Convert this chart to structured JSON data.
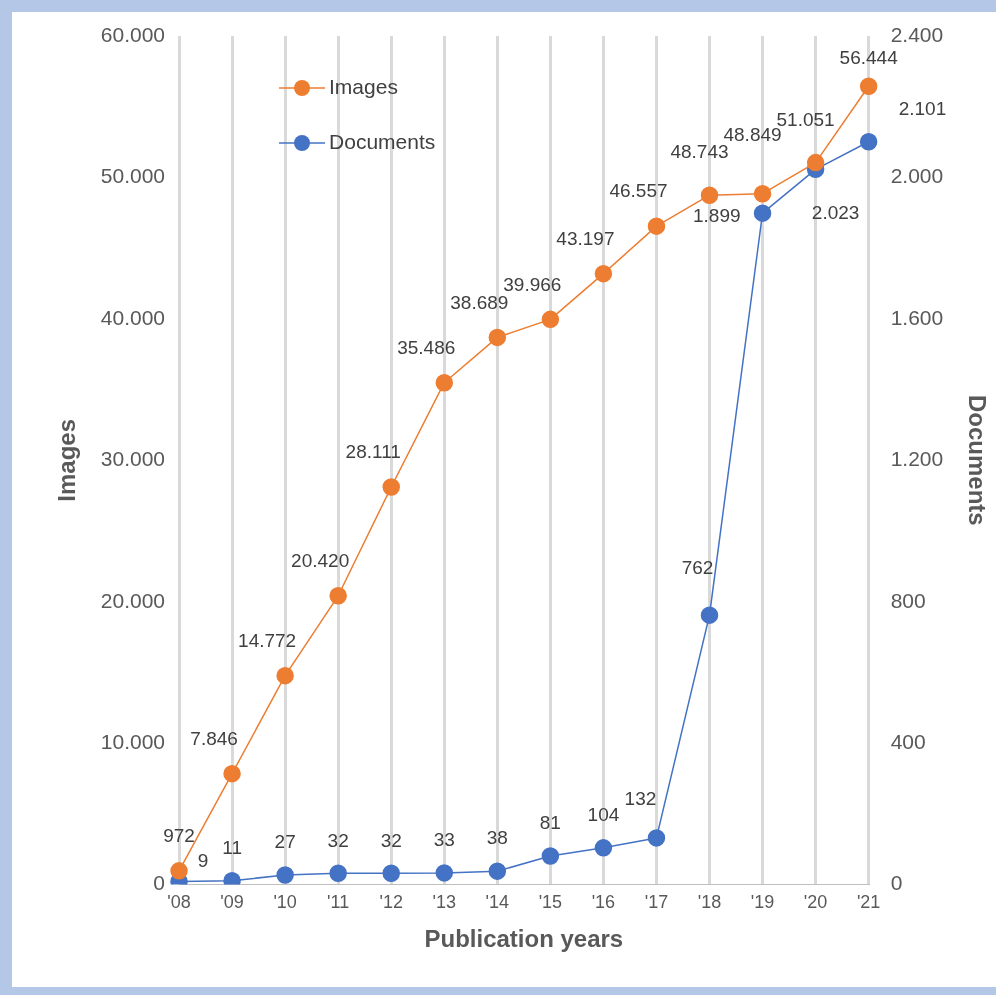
{
  "chart_data": {
    "type": "line",
    "xlabel": "Publication years",
    "ylabel": "Images",
    "y2label": "Documents",
    "categories": [
      "'08",
      "'09",
      "'10",
      "'11",
      "'12",
      "'13",
      "'14",
      "'15",
      "'16",
      "'17",
      "'18",
      "'19",
      "'20",
      "'21"
    ],
    "series": [
      {
        "name": "Images",
        "color": "#ed7d31",
        "values": [
          972,
          7846,
          14772,
          20420,
          28111,
          35486,
          38689,
          39966,
          43197,
          46557,
          48743,
          48849,
          51051,
          56444
        ],
        "value_labels": [
          "972",
          "7.846",
          "14.772",
          "20.420",
          "28.111",
          "35.486",
          "38.689",
          "39.966",
          "43.197",
          "46.557",
          "48.743",
          "48.849",
          "51.051",
          "56.444"
        ]
      },
      {
        "name": "Documents",
        "color": "#4472c4",
        "axis": "y2",
        "values": [
          9,
          11,
          27,
          32,
          32,
          33,
          38,
          81,
          104,
          132,
          762,
          1899,
          2023,
          2101
        ],
        "value_labels": [
          "9",
          "11",
          "27",
          "32",
          "32",
          "33",
          "38",
          "81",
          "104",
          "132",
          "762",
          "1.899",
          "2.023",
          "2.101"
        ]
      }
    ],
    "ylim": [
      0,
      60000
    ],
    "yticks": [
      0,
      {
        "value": 10000,
        "label": "10.000"
      },
      {
        "value": 20000,
        "label": "20.000"
      },
      {
        "value": 30000,
        "label": "30.000"
      },
      {
        "value": 40000,
        "label": "40.000"
      },
      {
        "value": 50000,
        "label": "50.000"
      },
      {
        "value": 60000,
        "label": "60.000"
      }
    ],
    "y2lim": [
      0,
      2400
    ],
    "y2ticks": [
      0,
      400,
      800,
      {
        "value": 1200,
        "label": "1.200"
      },
      {
        "value": 1600,
        "label": "1.600"
      },
      {
        "value": 2000,
        "label": "2.000"
      },
      {
        "value": 2400,
        "label": "2.400"
      }
    ],
    "grid": "x",
    "legend": "top left",
    "marker": "circle",
    "line_style": "solid"
  }
}
